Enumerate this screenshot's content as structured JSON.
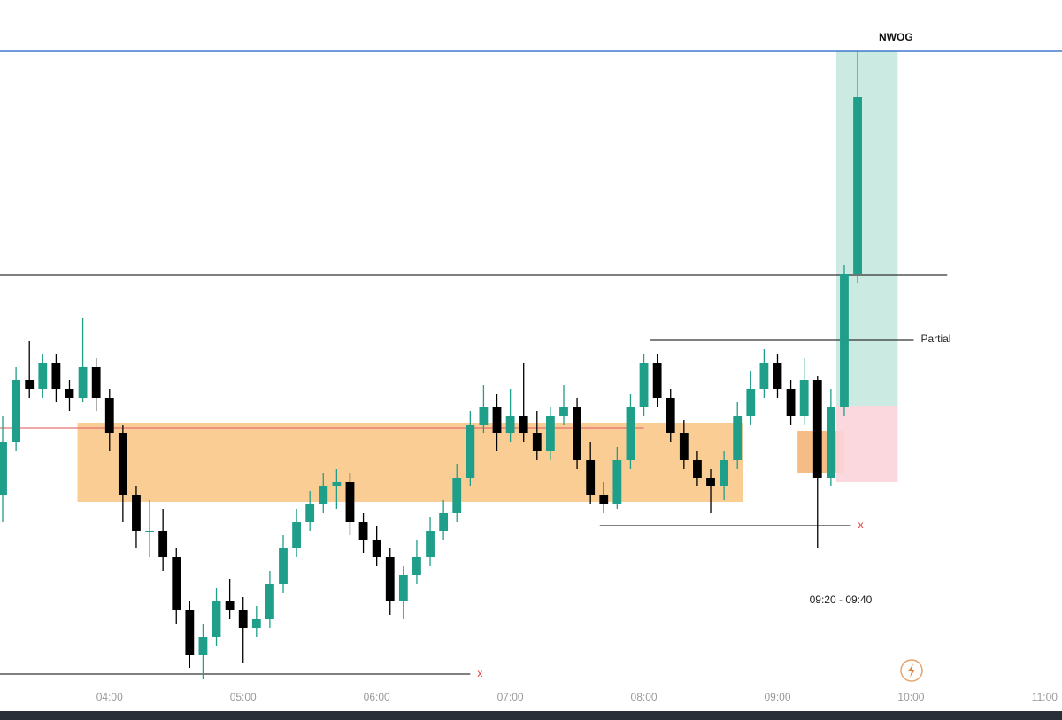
{
  "chart_data": {
    "type": "candlestick",
    "up_color": "#1f9e89",
    "down_color": "#000000",
    "xlim": [
      3.18,
      11.13
    ],
    "ylim": [
      0,
      780
    ],
    "xticks": [
      {
        "value": 4,
        "label": "04:00"
      },
      {
        "value": 5,
        "label": "05:00"
      },
      {
        "value": 6,
        "label": "06:00"
      },
      {
        "value": 7,
        "label": "07:00"
      },
      {
        "value": 8,
        "label": "08:00"
      },
      {
        "value": 9,
        "label": "09:00"
      },
      {
        "value": 10,
        "label": "10:00"
      },
      {
        "value": 11,
        "label": "11:00"
      }
    ],
    "x": [
      3.2,
      3.3,
      3.4,
      3.5,
      3.6,
      3.7,
      3.8,
      3.9,
      4.0,
      4.1,
      4.2,
      4.3,
      4.4,
      4.5,
      4.6,
      4.7,
      4.8,
      4.9,
      5.0,
      5.1,
      5.2,
      5.3,
      5.4,
      5.5,
      5.6,
      5.7,
      5.8,
      5.9,
      6.0,
      6.1,
      6.2,
      6.3,
      6.4,
      6.5,
      6.6,
      6.7,
      6.8,
      6.9,
      7.0,
      7.1,
      7.2,
      7.3,
      7.4,
      7.5,
      7.6,
      7.7,
      7.8,
      7.9,
      8.0,
      8.1,
      8.2,
      8.3,
      8.4,
      8.5,
      8.6,
      8.7,
      8.8,
      8.9,
      9.0,
      9.1,
      9.2,
      9.3,
      9.4,
      9.5,
      9.6
    ],
    "open": [
      220,
      280,
      350,
      340,
      370,
      340,
      330,
      365,
      330,
      290,
      220,
      180,
      180,
      150,
      90,
      40,
      60,
      100,
      90,
      70,
      80,
      120,
      160,
      190,
      210,
      230,
      235,
      190,
      170,
      150,
      100,
      130,
      150,
      180,
      200,
      240,
      300,
      320,
      290,
      310,
      290,
      270,
      310,
      320,
      260,
      220,
      210,
      260,
      320,
      370,
      330,
      290,
      260,
      240,
      230,
      260,
      310,
      340,
      370,
      340,
      310,
      350,
      240,
      320,
      470
    ],
    "high": [
      310,
      365,
      395,
      380,
      380,
      350,
      420,
      375,
      340,
      300,
      230,
      215,
      205,
      160,
      100,
      75,
      115,
      125,
      105,
      95,
      135,
      175,
      205,
      225,
      245,
      250,
      245,
      200,
      185,
      160,
      140,
      170,
      195,
      215,
      255,
      315,
      345,
      335,
      340,
      370,
      315,
      320,
      345,
      330,
      280,
      235,
      275,
      335,
      380,
      380,
      340,
      305,
      270,
      250,
      270,
      325,
      360,
      385,
      380,
      350,
      375,
      355,
      340,
      480,
      722
    ],
    "low": [
      190,
      270,
      330,
      330,
      325,
      315,
      325,
      315,
      270,
      190,
      160,
      150,
      135,
      75,
      25,
      12,
      50,
      80,
      30,
      60,
      70,
      110,
      150,
      180,
      200,
      205,
      175,
      155,
      140,
      85,
      80,
      120,
      140,
      170,
      190,
      230,
      290,
      270,
      280,
      280,
      260,
      260,
      300,
      250,
      210,
      200,
      205,
      250,
      310,
      320,
      280,
      250,
      230,
      200,
      215,
      250,
      300,
      330,
      330,
      300,
      300,
      160,
      230,
      310,
      460
    ],
    "close": [
      280,
      350,
      340,
      370,
      340,
      330,
      365,
      330,
      290,
      220,
      180,
      180,
      150,
      90,
      40,
      60,
      100,
      90,
      70,
      80,
      120,
      160,
      190,
      210,
      230,
      235,
      190,
      170,
      150,
      100,
      130,
      150,
      180,
      200,
      240,
      300,
      320,
      290,
      310,
      290,
      270,
      310,
      320,
      260,
      220,
      210,
      260,
      320,
      370,
      330,
      290,
      260,
      240,
      230,
      260,
      310,
      340,
      370,
      340,
      310,
      350,
      240,
      320,
      470,
      670
    ],
    "zones": [
      {
        "x": [
          3.76,
          8.74
        ],
        "y": [
          213,
          302
        ],
        "color": "#f9c88a"
      },
      {
        "x": [
          9.15,
          9.5
        ],
        "y": [
          245,
          293
        ],
        "color": "#f4b678"
      },
      {
        "x": [
          9.44,
          9.9
        ],
        "y": [
          321,
          722
        ],
        "color": "#c5e8df"
      },
      {
        "x": [
          9.44,
          9.9
        ],
        "y": [
          235,
          321
        ],
        "color": "#fad4d9"
      }
    ],
    "levels": [
      {
        "label": "NWOG",
        "value": 722,
        "x": [
          3.18,
          11.13
        ],
        "color": "#1e5fc8"
      },
      {
        "value": 469,
        "x": [
          3.18,
          10.27
        ],
        "color": "#333333"
      },
      {
        "label": "Partial",
        "value": 396,
        "x": [
          8.05,
          10.02
        ],
        "color": "#333333"
      },
      {
        "value": 296,
        "x": [
          3.18,
          8.0
        ],
        "color": "#e57373"
      },
      {
        "label": "x",
        "value": 186,
        "x": [
          7.67,
          9.55
        ],
        "color": "#333333"
      },
      {
        "label": "x",
        "value": 18,
        "x": [
          3.18,
          6.7
        ],
        "color": "#333333"
      }
    ],
    "session_label": "09:20 - 09:40"
  }
}
